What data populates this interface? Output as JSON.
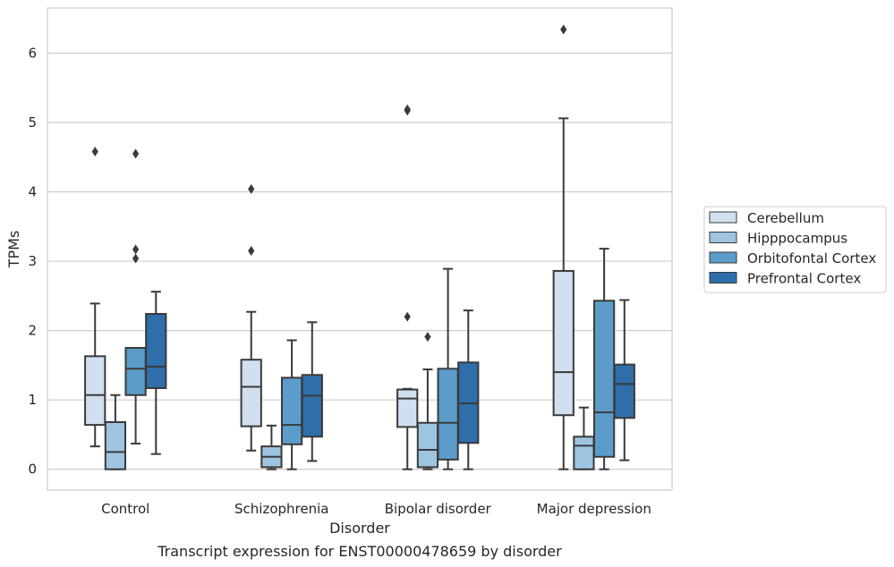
{
  "chart_data": {
    "type": "boxplot",
    "title": "",
    "caption": "Transcript expression for ENST00000478659 by disorder",
    "xlabel": "Disorder",
    "ylabel": "TPMs",
    "ylim": [
      -0.3,
      6.65
    ],
    "yticks": [
      0,
      1,
      2,
      3,
      4,
      5,
      6
    ],
    "grid": "horizontal",
    "legend_position": "outside-right",
    "categories": [
      "Control",
      "Schizophrenia",
      "Bipolar disorder",
      "Major depression"
    ],
    "series": [
      {
        "name": "Cerebellum",
        "color": "#d0e0f0",
        "boxes": [
          {
            "whislo": 0.33,
            "q1": 0.64,
            "med": 1.07,
            "q3": 1.63,
            "whishi": 2.39,
            "fliers": [
              4.58
            ]
          },
          {
            "whislo": 0.27,
            "q1": 0.62,
            "med": 1.19,
            "q3": 1.58,
            "whishi": 2.27,
            "fliers": [
              3.15,
              4.04
            ]
          },
          {
            "whislo": 0.0,
            "q1": 0.61,
            "med": 1.02,
            "q3": 1.15,
            "whishi": 1.16,
            "fliers": [
              2.2,
              5.17,
              5.19
            ]
          },
          {
            "whislo": 0.0,
            "q1": 0.78,
            "med": 1.4,
            "q3": 2.86,
            "whishi": 5.06,
            "fliers": [
              6.34
            ]
          }
        ]
      },
      {
        "name": "Hipppocampus",
        "color": "#9ec4e0",
        "boxes": [
          {
            "whislo": 0.0,
            "q1": 0.0,
            "med": 0.25,
            "q3": 0.68,
            "whishi": 1.07,
            "fliers": []
          },
          {
            "whislo": 0.0,
            "q1": 0.03,
            "med": 0.18,
            "q3": 0.33,
            "whishi": 0.63,
            "fliers": []
          },
          {
            "whislo": 0.0,
            "q1": 0.03,
            "med": 0.28,
            "q3": 0.67,
            "whishi": 1.44,
            "fliers": [
              1.91
            ]
          },
          {
            "whislo": 0.0,
            "q1": 0.0,
            "med": 0.34,
            "q3": 0.47,
            "whishi": 0.89,
            "fliers": []
          }
        ]
      },
      {
        "name": "Orbitofontal Cortex",
        "color": "#5b9cca",
        "boxes": [
          {
            "whislo": 0.37,
            "q1": 1.07,
            "med": 1.45,
            "q3": 1.75,
            "whishi": 1.75,
            "fliers": [
              3.04,
              3.17,
              4.55
            ]
          },
          {
            "whislo": 0.0,
            "q1": 0.36,
            "med": 0.64,
            "q3": 1.32,
            "whishi": 1.86,
            "fliers": []
          },
          {
            "whislo": 0.0,
            "q1": 0.14,
            "med": 0.67,
            "q3": 1.45,
            "whishi": 2.89,
            "fliers": []
          },
          {
            "whislo": 0.0,
            "q1": 0.18,
            "med": 0.82,
            "q3": 2.43,
            "whishi": 3.18,
            "fliers": []
          }
        ]
      },
      {
        "name": "Prefrontal Cortex",
        "color": "#2e6eab",
        "boxes": [
          {
            "whislo": 0.22,
            "q1": 1.17,
            "med": 1.48,
            "q3": 2.24,
            "whishi": 2.56,
            "fliers": []
          },
          {
            "whislo": 0.12,
            "q1": 0.47,
            "med": 1.06,
            "q3": 1.36,
            "whishi": 2.12,
            "fliers": []
          },
          {
            "whislo": 0.0,
            "q1": 0.38,
            "med": 0.95,
            "q3": 1.54,
            "whishi": 2.29,
            "fliers": []
          },
          {
            "whislo": 0.13,
            "q1": 0.74,
            "med": 1.23,
            "q3": 1.51,
            "whishi": 2.44,
            "fliers": []
          }
        ]
      }
    ]
  }
}
